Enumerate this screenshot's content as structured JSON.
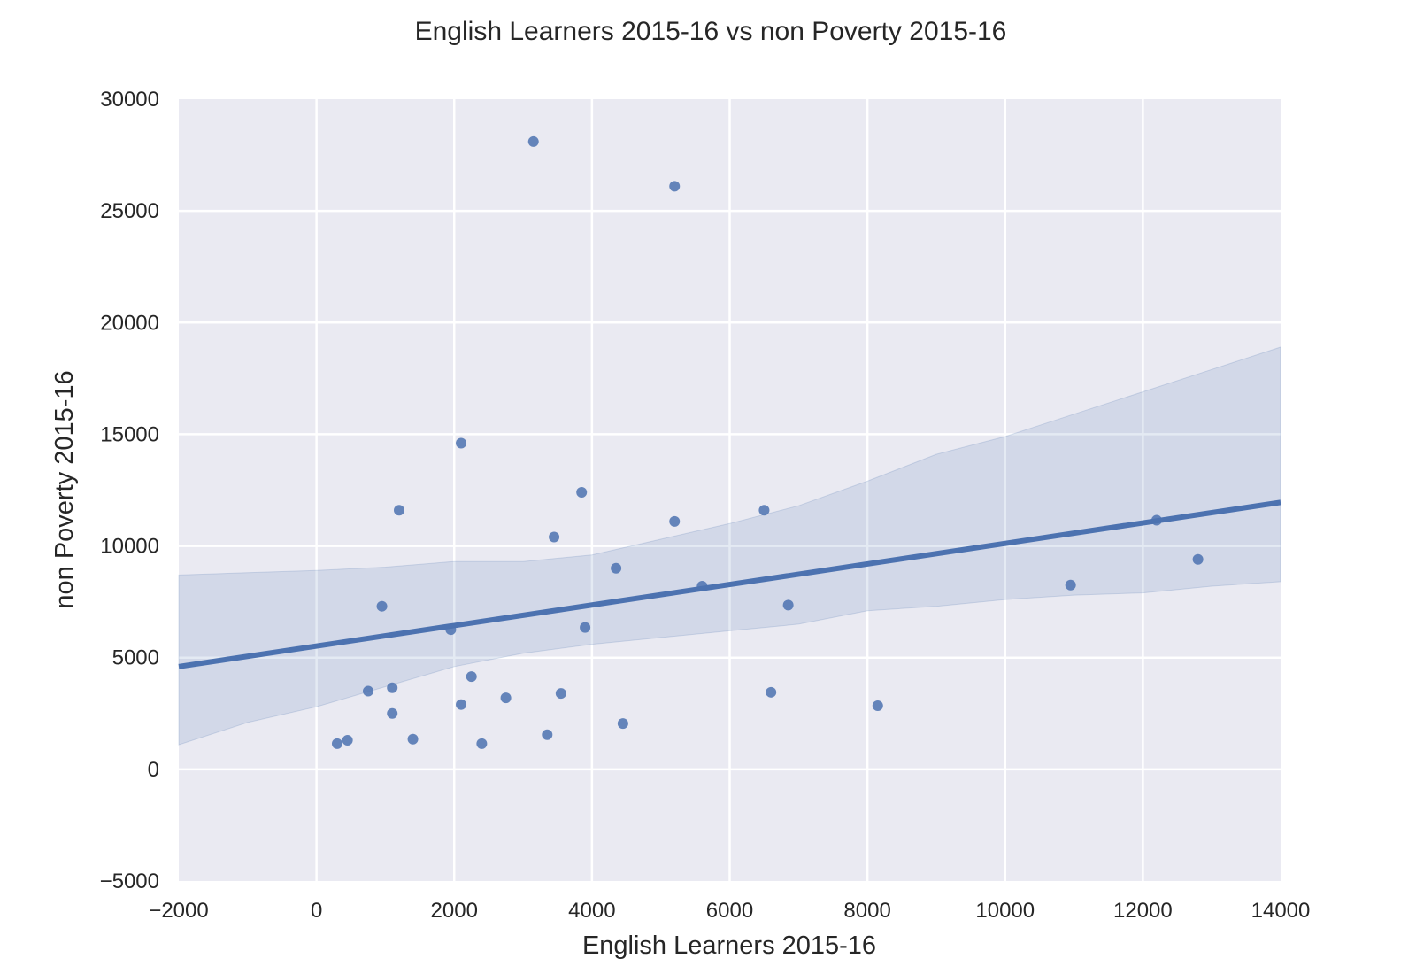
{
  "chart_data": {
    "type": "scatter",
    "title": "English Learners 2015-16 vs non Poverty 2015-16",
    "xlabel": "English Learners 2015-16",
    "ylabel": "non Poverty 2015-16",
    "xlim": [
      -2000,
      14000
    ],
    "ylim": [
      -5000,
      30000
    ],
    "xticks": [
      -2000,
      0,
      2000,
      4000,
      6000,
      8000,
      10000,
      12000,
      14000
    ],
    "yticks": [
      -5000,
      0,
      5000,
      10000,
      15000,
      20000,
      25000,
      30000
    ],
    "xtick_labels": [
      "−2000",
      "0",
      "2000",
      "4000",
      "6000",
      "8000",
      "10000",
      "12000",
      "14000"
    ],
    "ytick_labels": [
      "−5000",
      "0",
      "5000",
      "10000",
      "15000",
      "20000",
      "25000",
      "30000"
    ],
    "grid": true,
    "points": [
      {
        "x": 3150,
        "y": 28100
      },
      {
        "x": 5200,
        "y": 26100
      },
      {
        "x": 2100,
        "y": 14600
      },
      {
        "x": 3850,
        "y": 12400
      },
      {
        "x": 1200,
        "y": 11600
      },
      {
        "x": 6500,
        "y": 11600
      },
      {
        "x": 5200,
        "y": 11100
      },
      {
        "x": 12200,
        "y": 11150
      },
      {
        "x": 3450,
        "y": 10400
      },
      {
        "x": 12800,
        "y": 9400
      },
      {
        "x": 4350,
        "y": 9000
      },
      {
        "x": 5600,
        "y": 8200
      },
      {
        "x": 10950,
        "y": 8250
      },
      {
        "x": 950,
        "y": 7300
      },
      {
        "x": 6850,
        "y": 7350
      },
      {
        "x": 1950,
        "y": 6250
      },
      {
        "x": 3900,
        "y": 6350
      },
      {
        "x": 2250,
        "y": 4150
      },
      {
        "x": 1100,
        "y": 3650
      },
      {
        "x": 750,
        "y": 3500
      },
      {
        "x": 3550,
        "y": 3400
      },
      {
        "x": 6600,
        "y": 3450
      },
      {
        "x": 2750,
        "y": 3200
      },
      {
        "x": 2100,
        "y": 2900
      },
      {
        "x": 8150,
        "y": 2850
      },
      {
        "x": 1100,
        "y": 2500
      },
      {
        "x": 4450,
        "y": 2050
      },
      {
        "x": 3350,
        "y": 1550
      },
      {
        "x": 1400,
        "y": 1350
      },
      {
        "x": 450,
        "y": 1300
      },
      {
        "x": 300,
        "y": 1150
      },
      {
        "x": 2400,
        "y": 1150
      }
    ],
    "regression_line": {
      "x": [
        -2000,
        14000
      ],
      "y": [
        4600,
        11950
      ]
    },
    "confidence_band": {
      "x": [
        -2000,
        -1000,
        0,
        1000,
        2000,
        3000,
        4000,
        5000,
        6000,
        7000,
        8000,
        9000,
        10000,
        11000,
        12000,
        13000,
        14000
      ],
      "upper": [
        8700,
        8800,
        8900,
        9050,
        9300,
        9300,
        9600,
        10300,
        11000,
        11800,
        12900,
        14100,
        14900,
        15900,
        16900,
        17900,
        18900
      ],
      "lower": [
        1100,
        2100,
        2800,
        3700,
        4600,
        5200,
        5600,
        5900,
        6200,
        6500,
        7100,
        7300,
        7600,
        7800,
        7900,
        8200,
        8400
      ]
    },
    "colors": {
      "background": "#eaeaf2",
      "grid": "#ffffff",
      "point": "#4c72b0",
      "line": "#4c72b0",
      "band": "#4c72b0"
    }
  }
}
